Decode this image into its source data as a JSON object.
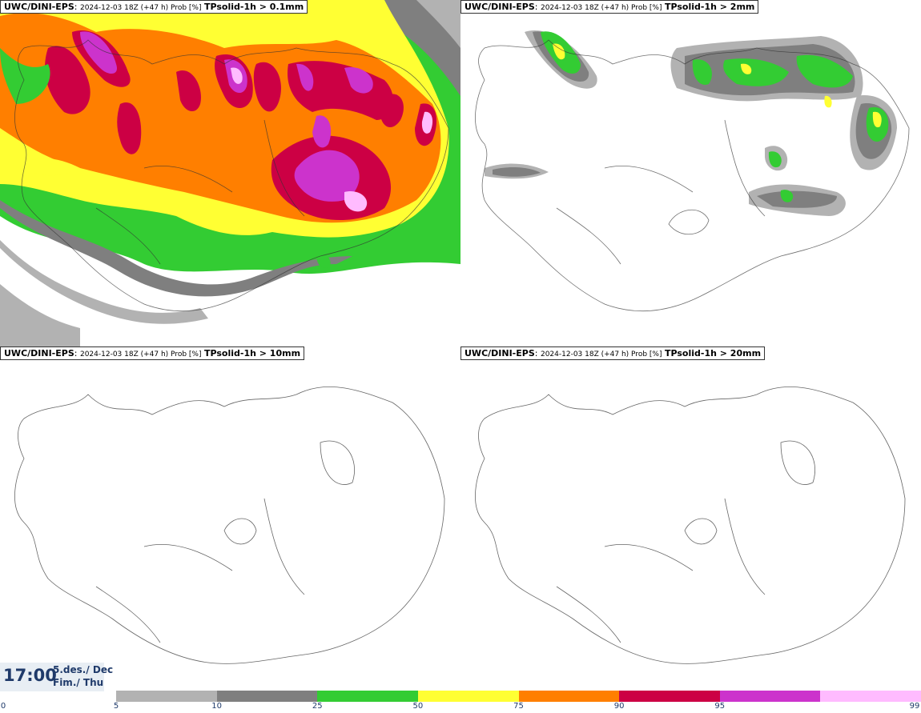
{
  "panels": [
    {
      "model": "UWC/DINI-EPS",
      "meta": "2024-12-03 18Z (+47 h) Prob [%]",
      "param": "TPsolid-1h > 0.1mm"
    },
    {
      "model": "UWC/DINI-EPS",
      "meta": "2024-12-03 18Z (+47 h) Prob [%]",
      "param": "TPsolid-1h > 2mm"
    },
    {
      "model": "UWC/DINI-EPS",
      "meta": "2024-12-03 18Z (+47 h) Prob [%]",
      "param": "TPsolid-1h > 10mm"
    },
    {
      "model": "UWC/DINI-EPS",
      "meta": "2024-12-03 18Z (+47 h) Prob [%]",
      "param": "TPsolid-1h > 20mm"
    }
  ],
  "panel_suffix": ":",
  "time": "17:00",
  "date_line1": "5.des./ Dec",
  "date_line2": "Fim./ Thu",
  "legend": {
    "ticks": [
      "0",
      "5",
      "10",
      "25",
      "50",
      "75",
      "90",
      "95",
      "99"
    ],
    "colors": [
      "#b2b2b2",
      "#7f7f7f",
      "#33cc33",
      "#ffff33",
      "#ff7f00",
      "#cc0044",
      "#cc33cc",
      "#ffbbff"
    ]
  }
}
